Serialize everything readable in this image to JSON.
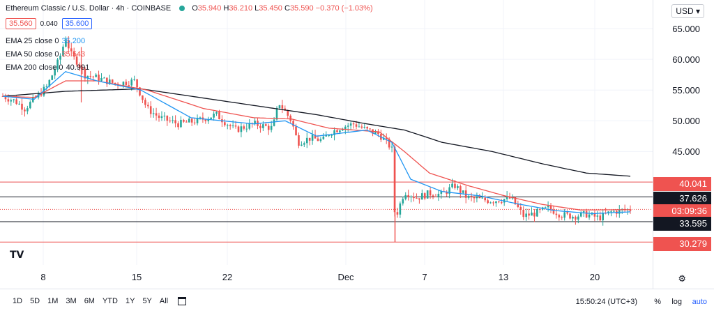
{
  "header": {
    "symbol": "Ethereum Classic / U.S. Dollar · 4h · COINBASE",
    "ohlc": {
      "o_label": "O",
      "o": "35.940",
      "h_label": "H",
      "h": "36.210",
      "l_label": "L",
      "l": "35.450",
      "c_label": "C",
      "c": "35.590",
      "change": "−0.370 (−1.03%)"
    },
    "sell": "35.560",
    "spread": "0.040",
    "buy": "35.600"
  },
  "indicators": [
    {
      "label": "EMA 25 close 0",
      "value": "35.200",
      "color": "#2196f3"
    },
    {
      "label": "EMA 50 close 0",
      "value": "35.543",
      "color": "#ef5350"
    },
    {
      "label": "EMA 200 close 0",
      "value": "40.991",
      "color": "#131722"
    }
  ],
  "currency": "USD",
  "toolbar": {
    "ranges": [
      "1D",
      "5D",
      "1M",
      "3M",
      "6M",
      "YTD",
      "1Y",
      "5Y",
      "All"
    ],
    "clock": "15:50:24 (UTC+3)",
    "percent": "%",
    "log": "log",
    "auto": "auto"
  },
  "price_tags": {
    "level_40": "40.041",
    "level_37": "37.626",
    "countdown": "03:09:36",
    "level_33": "33.595",
    "level_30": "30.279"
  },
  "chart_data": {
    "type": "candlestick",
    "yticks": [
      "65.000",
      "60.000",
      "55.000",
      "50.000",
      "45.000",
      "40.000"
    ],
    "ytick_values": [
      65,
      60,
      55,
      50,
      45,
      40
    ],
    "ylim": [
      29,
      67
    ],
    "xticks": [
      "8",
      "15",
      "22",
      "Dec",
      "7",
      "13",
      "20"
    ],
    "horizontal_levels": [
      {
        "value": 40.041,
        "color": "#ef5350"
      },
      {
        "value": 37.626,
        "color": "#131722"
      },
      {
        "value": 33.595,
        "color": "#131722"
      },
      {
        "value": 30.279,
        "color": "#ef5350"
      }
    ],
    "last_price": 35.59,
    "colors": {
      "up": "#26a69a",
      "down": "#ef5350",
      "ema25": "#2196f3",
      "ema50": "#ef5350",
      "ema200": "#131722"
    },
    "close_path": [
      [
        0,
        54.0
      ],
      [
        0.02,
        53.2
      ],
      [
        0.035,
        52.0
      ],
      [
        0.05,
        53.5
      ],
      [
        0.07,
        55.5
      ],
      [
        0.09,
        60.0
      ],
      [
        0.1,
        63.5
      ],
      [
        0.11,
        60.5
      ],
      [
        0.12,
        59.5
      ],
      [
        0.13,
        57.5
      ],
      [
        0.15,
        57.0
      ],
      [
        0.18,
        56.0
      ],
      [
        0.21,
        56.5
      ],
      [
        0.23,
        52.0
      ],
      [
        0.25,
        50.5
      ],
      [
        0.28,
        49.5
      ],
      [
        0.31,
        50.0
      ],
      [
        0.34,
        51.0
      ],
      [
        0.37,
        48.5
      ],
      [
        0.4,
        49.5
      ],
      [
        0.43,
        48.8
      ],
      [
        0.44,
        53.0
      ],
      [
        0.46,
        50.0
      ],
      [
        0.47,
        46.5
      ],
      [
        0.49,
        47.2
      ],
      [
        0.51,
        46.8
      ],
      [
        0.52,
        48.0
      ],
      [
        0.54,
        49.0
      ],
      [
        0.56,
        49.5
      ],
      [
        0.58,
        48.5
      ],
      [
        0.6,
        47.8
      ],
      [
        0.62,
        45.5
      ],
      [
        0.625,
        34.0
      ],
      [
        0.64,
        38.5
      ],
      [
        0.66,
        37.5
      ],
      [
        0.68,
        38.2
      ],
      [
        0.7,
        38.0
      ],
      [
        0.72,
        39.5
      ],
      [
        0.74,
        37.5
      ],
      [
        0.76,
        37.2
      ],
      [
        0.78,
        37.0
      ],
      [
        0.81,
        37.4
      ],
      [
        0.83,
        34.5
      ],
      [
        0.85,
        35.0
      ],
      [
        0.87,
        35.8
      ],
      [
        0.89,
        34.7
      ],
      [
        0.91,
        34.5
      ],
      [
        0.93,
        34.8
      ],
      [
        0.95,
        34.2
      ],
      [
        0.97,
        35.2
      ],
      [
        1.0,
        35.59
      ]
    ],
    "ema25_path": [
      [
        0,
        54.0
      ],
      [
        0.05,
        53.5
      ],
      [
        0.1,
        58.0
      ],
      [
        0.15,
        56.5
      ],
      [
        0.22,
        55.0
      ],
      [
        0.3,
        50.5
      ],
      [
        0.4,
        49.5
      ],
      [
        0.45,
        50.0
      ],
      [
        0.5,
        47.5
      ],
      [
        0.58,
        48.5
      ],
      [
        0.62,
        46.5
      ],
      [
        0.65,
        40.5
      ],
      [
        0.7,
        38.5
      ],
      [
        0.76,
        37.8
      ],
      [
        0.82,
        36.5
      ],
      [
        0.88,
        35.4
      ],
      [
        0.94,
        34.9
      ],
      [
        1.0,
        35.2
      ]
    ],
    "ema50_path": [
      [
        0,
        54.0
      ],
      [
        0.05,
        53.8
      ],
      [
        0.1,
        56.5
      ],
      [
        0.15,
        56.5
      ],
      [
        0.23,
        55.0
      ],
      [
        0.32,
        52.0
      ],
      [
        0.4,
        50.5
      ],
      [
        0.46,
        50.3
      ],
      [
        0.52,
        48.8
      ],
      [
        0.6,
        48.2
      ],
      [
        0.64,
        45.0
      ],
      [
        0.68,
        41.5
      ],
      [
        0.74,
        39.5
      ],
      [
        0.8,
        37.8
      ],
      [
        0.86,
        36.4
      ],
      [
        0.92,
        35.5
      ],
      [
        1.0,
        35.54
      ]
    ],
    "ema200_path": [
      [
        0,
        54.0
      ],
      [
        0.1,
        54.8
      ],
      [
        0.22,
        55.2
      ],
      [
        0.3,
        54.0
      ],
      [
        0.4,
        52.5
      ],
      [
        0.5,
        51.0
      ],
      [
        0.58,
        49.5
      ],
      [
        0.64,
        48.5
      ],
      [
        0.7,
        46.5
      ],
      [
        0.78,
        45.0
      ],
      [
        0.86,
        43.0
      ],
      [
        0.93,
        41.5
      ],
      [
        1.0,
        40.99
      ]
    ]
  }
}
